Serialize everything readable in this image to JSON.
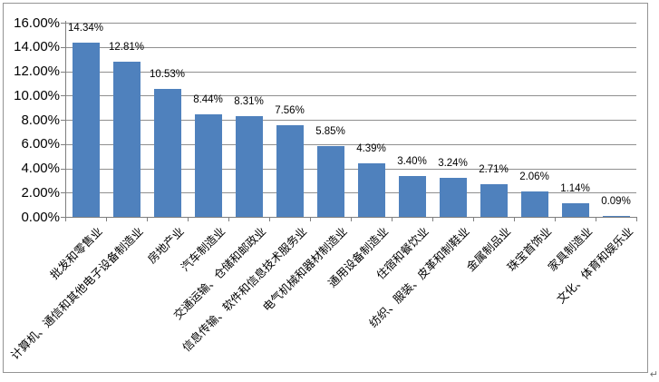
{
  "page": {
    "paragraph_mark": "↵"
  },
  "chart_data": {
    "type": "bar",
    "title": "",
    "xlabel": "",
    "ylabel": "",
    "categories": [
      "批发和零售业",
      "计算机、通信和其他电子设备制造业",
      "房地产业",
      "汽车制造业",
      "交通运输、仓储和邮政业",
      "信息传输、软件和信息技术服务业",
      "电气机械和器材制造业",
      "通用设备制造业",
      "住宿和餐饮业",
      "纺织、服装、皮革和制鞋业",
      "金属制品业",
      "珠宝首饰业",
      "家具制造业",
      "文化、体育和娱乐业"
    ],
    "values": [
      14.34,
      12.81,
      10.53,
      8.44,
      8.31,
      7.56,
      5.85,
      4.39,
      3.4,
      3.24,
      2.71,
      2.06,
      1.14,
      0.09
    ],
    "data_labels": [
      "14.34%",
      "12.81%",
      "10.53%",
      "8.44%",
      "8.31%",
      "7.56%",
      "5.85%",
      "4.39%",
      "3.40%",
      "3.24%",
      "2.71%",
      "2.06%",
      "1.14%",
      "0.09%"
    ],
    "ytick_labels": [
      "16.00%",
      "14.00%",
      "12.00%",
      "10.00%",
      "8.00%",
      "6.00%",
      "4.00%",
      "2.00%",
      "0.00%"
    ],
    "ylim": [
      0,
      16
    ],
    "ytick_step": 2,
    "grid": true,
    "legend": "none",
    "colors": {
      "bar": "#4F81BD",
      "gridline": "#8F8F8F",
      "axis": "#7F7F7F",
      "text": "#000000",
      "frame_border": "#949494",
      "background": "#FFFFFF"
    }
  }
}
